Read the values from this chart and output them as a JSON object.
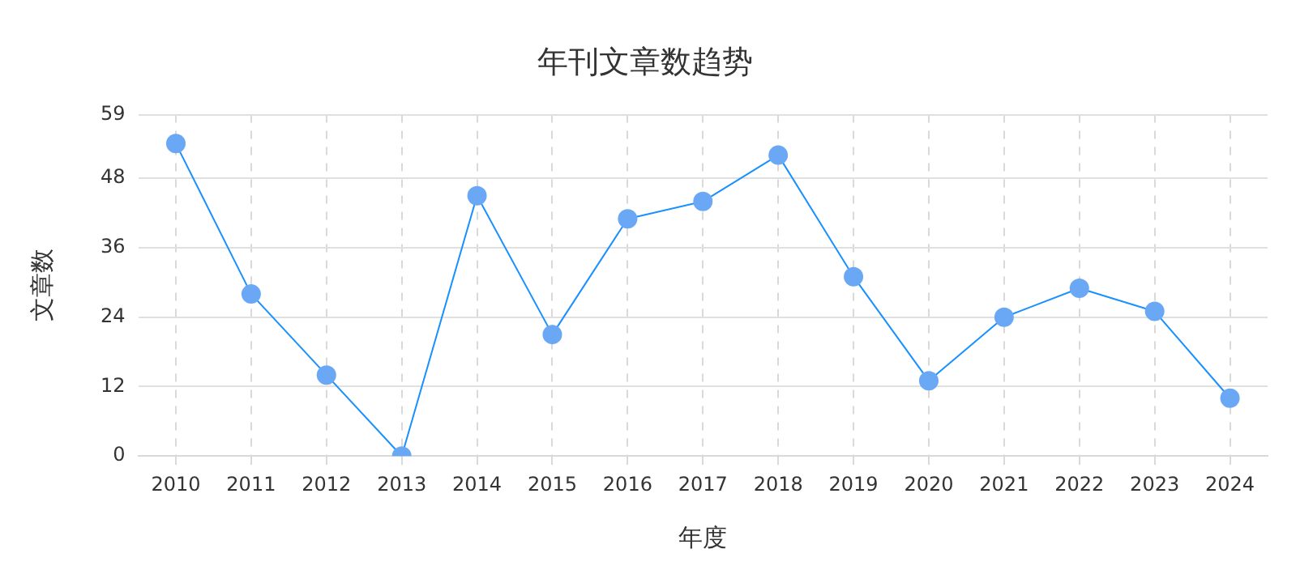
{
  "chart_data": {
    "type": "line",
    "title": "年刊文章数趋势",
    "xlabel": "年度",
    "ylabel": "文章数",
    "categories": [
      "2010",
      "2011",
      "2012",
      "2013",
      "2014",
      "2015",
      "2016",
      "2017",
      "2018",
      "2019",
      "2020",
      "2021",
      "2022",
      "2023",
      "2024"
    ],
    "series": [
      {
        "color": "#1890ff",
        "values": [
          54,
          28,
          14,
          0,
          45,
          21,
          41,
          44,
          52,
          31,
          13,
          24,
          29,
          25,
          10
        ]
      }
    ],
    "ylim": [
      0,
      59
    ],
    "yticks": [
      0,
      12,
      24,
      36,
      48,
      59
    ],
    "grid": true,
    "legend": false,
    "marker": "circle",
    "line_style": "solid"
  }
}
